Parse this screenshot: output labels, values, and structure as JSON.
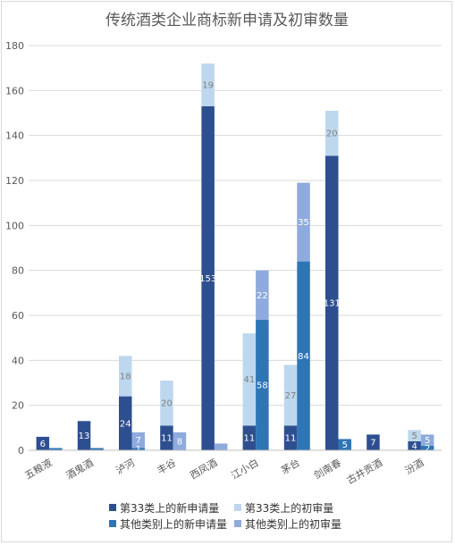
{
  "chart_data": {
    "type": "bar",
    "title": "传统酒类企业商标新申请及初审数量",
    "categories": [
      "五粮液",
      "酒鬼酒",
      "泸河",
      "丰谷",
      "西凤酒",
      "江小白",
      "茅台",
      "剑南春",
      "古井贡酒",
      "汾酒"
    ],
    "ylim": [
      0,
      180
    ],
    "yticks": [
      0,
      20,
      40,
      60,
      80,
      100,
      120,
      140,
      160,
      180
    ],
    "grid": true,
    "legend_position": "bottom",
    "series": [
      {
        "name": "第33类上的新申请量",
        "values": [
          6,
          13,
          24,
          11,
          153,
          11,
          11,
          131,
          7,
          4
        ],
        "color": "#2e4f8f",
        "label_color": "#ffffff",
        "stack": "A"
      },
      {
        "name": "第33类上的初审量",
        "values": [
          0,
          0,
          18,
          20,
          19,
          41,
          27,
          20,
          0,
          5
        ],
        "color": "#bdd7ee",
        "label_color": "#808080",
        "stack": "A"
      },
      {
        "name": "其他类别上的新申请量",
        "values": [
          1,
          1,
          1,
          0,
          0,
          58,
          84,
          5,
          0,
          2
        ],
        "color": "#2e75b6",
        "label_color": "#ffffff",
        "stack": "B"
      },
      {
        "name": "其他类别上的初审量",
        "values": [
          0,
          0,
          7,
          8,
          3,
          22,
          35,
          0,
          0,
          5
        ],
        "color": "#8faadc",
        "label_color": "#ffffff",
        "stack": "B"
      }
    ],
    "data_labels": [
      {
        "text": "6",
        "category": 0,
        "series": 0
      },
      {
        "text": "13",
        "category": 1,
        "series": 0
      },
      {
        "text": "24",
        "category": 2,
        "series": 0
      },
      {
        "text": "18",
        "category": 2,
        "series": 1
      },
      {
        "text": "1",
        "category": 2,
        "series": 2
      },
      {
        "text": "7",
        "category": 2,
        "series": 3
      },
      {
        "text": "11",
        "category": 3,
        "series": 0
      },
      {
        "text": "20",
        "category": 3,
        "series": 1
      },
      {
        "text": "8",
        "category": 3,
        "series": 3
      },
      {
        "text": "153",
        "category": 4,
        "series": 0
      },
      {
        "text": "19",
        "category": 4,
        "series": 1
      },
      {
        "text": "11",
        "category": 5,
        "series": 0
      },
      {
        "text": "41",
        "category": 5,
        "series": 1
      },
      {
        "text": "58",
        "category": 5,
        "series": 2
      },
      {
        "text": "22",
        "category": 5,
        "series": 3
      },
      {
        "text": "11",
        "category": 6,
        "series": 0
      },
      {
        "text": "27",
        "category": 6,
        "series": 1
      },
      {
        "text": "84",
        "category": 6,
        "series": 2
      },
      {
        "text": "35",
        "category": 6,
        "series": 3
      },
      {
        "text": "131",
        "category": 7,
        "series": 0
      },
      {
        "text": "20",
        "category": 7,
        "series": 1
      },
      {
        "text": "5",
        "category": 7,
        "series": 2
      },
      {
        "text": "7",
        "category": 8,
        "series": 0
      },
      {
        "text": "4",
        "category": 9,
        "series": 0
      },
      {
        "text": "5",
        "category": 9,
        "series": 1
      },
      {
        "text": "2",
        "category": 9,
        "series": 2
      },
      {
        "text": "5",
        "category": 9,
        "series": 3
      }
    ]
  }
}
